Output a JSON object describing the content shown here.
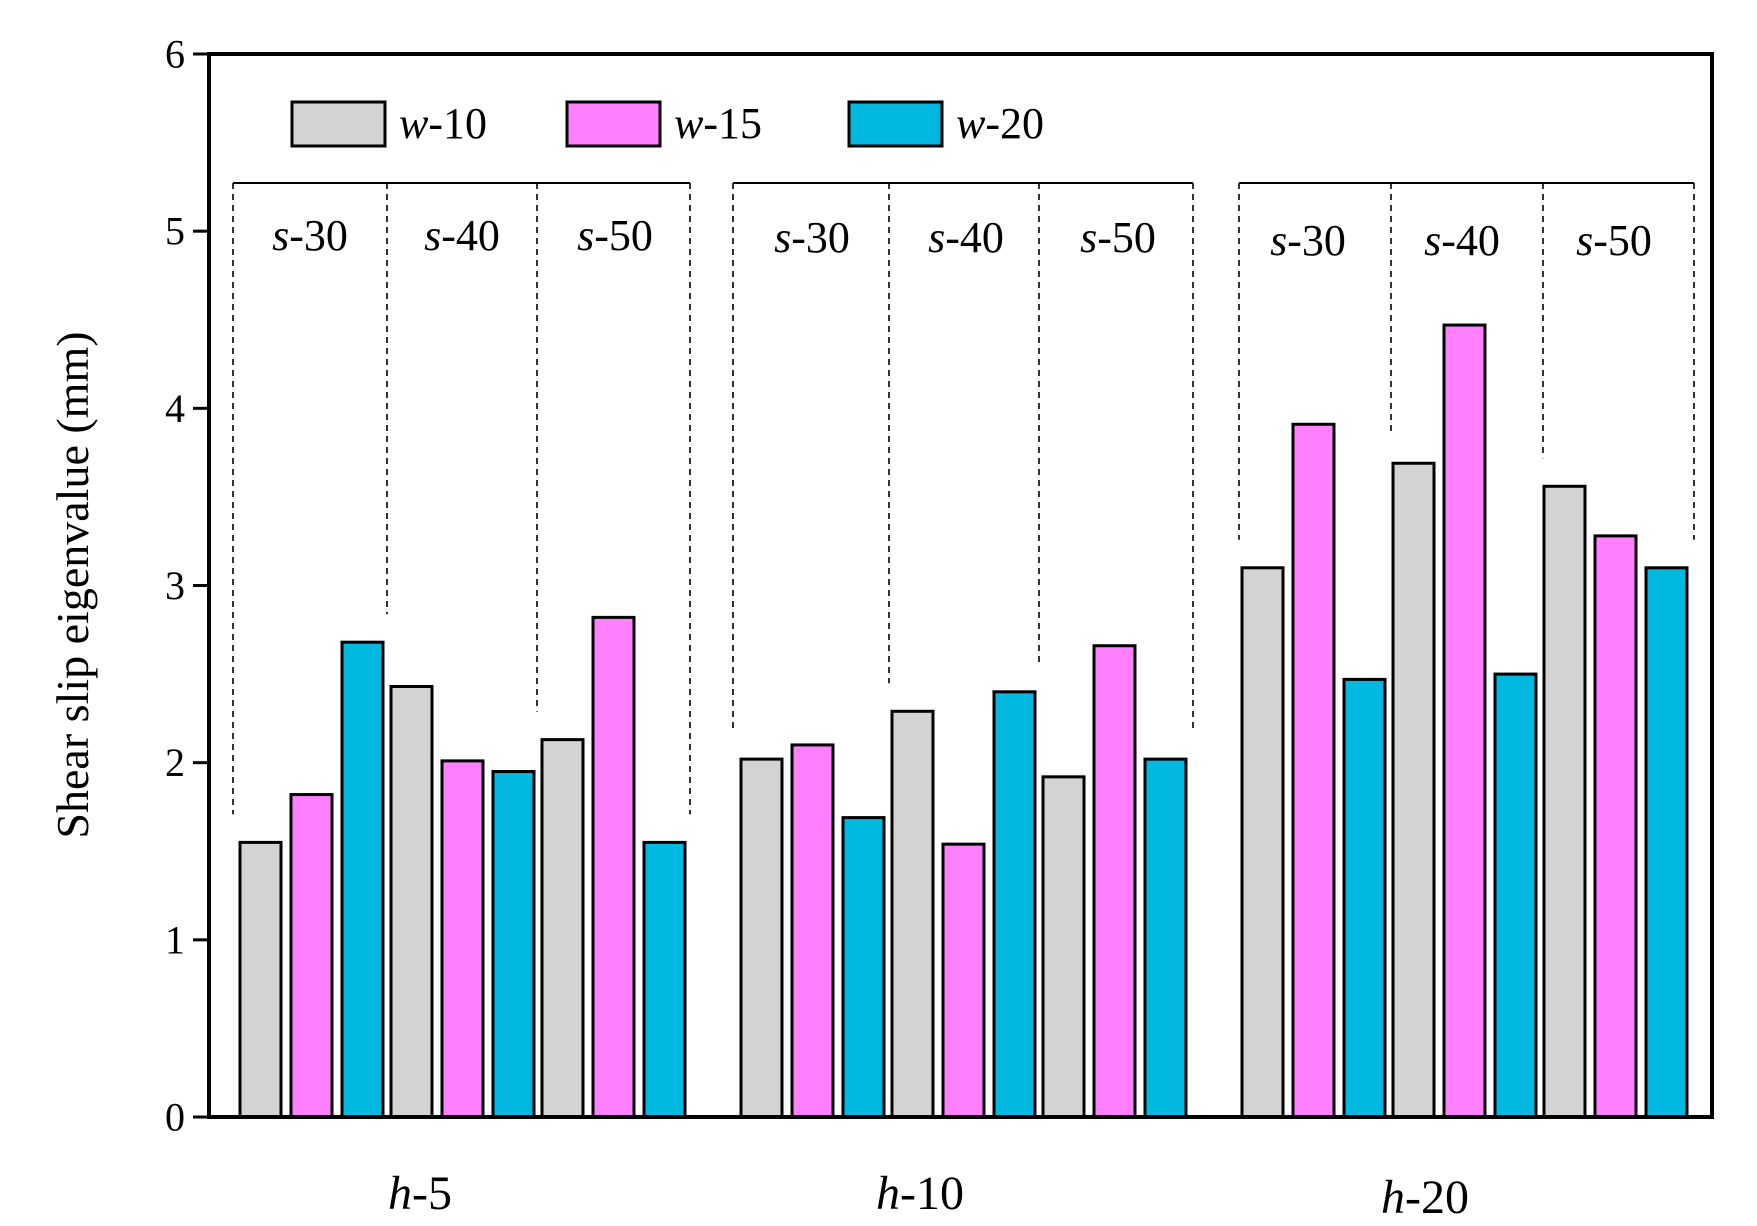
{
  "chart_data": {
    "type": "bar",
    "ylabel": "Shear slip eigenvalue (mm)",
    "xlabel": "",
    "ylim": [
      0,
      6
    ],
    "yticks": [
      "0",
      "1",
      "2",
      "3",
      "4",
      "5",
      "6"
    ],
    "grid": false,
    "legend_position": "top-left",
    "colors": {
      "w-10": "#d3d3d3",
      "w-15": "#ff80ff",
      "w-20": "#00b8e0"
    },
    "legend": [
      {
        "prefix": "w",
        "suffix": "-10",
        "color": "#d3d3d3"
      },
      {
        "prefix": "w",
        "suffix": "-15",
        "color": "#ff80ff"
      },
      {
        "prefix": "w",
        "suffix": "-20",
        "color": "#00b8e0"
      }
    ],
    "groups": [
      {
        "prefix": "h",
        "suffix": "-5",
        "subgroups": [
          {
            "prefix": "s",
            "suffix": "-30",
            "values": [
              1.55,
              1.82,
              2.68
            ]
          },
          {
            "prefix": "s",
            "suffix": "-40",
            "values": [
              2.43,
              2.01,
              1.95
            ]
          },
          {
            "prefix": "s",
            "suffix": "-50",
            "values": [
              2.13,
              2.82,
              1.55
            ]
          }
        ]
      },
      {
        "prefix": "h",
        "suffix": "-10",
        "subgroups": [
          {
            "prefix": "s",
            "suffix": "-30",
            "values": [
              2.02,
              2.1,
              1.69
            ]
          },
          {
            "prefix": "s",
            "suffix": "-40",
            "values": [
              2.29,
              1.54,
              2.4
            ]
          },
          {
            "prefix": "s",
            "suffix": "-50",
            "values": [
              1.92,
              2.66,
              2.02
            ]
          }
        ]
      },
      {
        "prefix": "h",
        "suffix": "-20",
        "subgroups": [
          {
            "prefix": "s",
            "suffix": "-30",
            "values": [
              3.1,
              3.91,
              2.47
            ]
          },
          {
            "prefix": "s",
            "suffix": "-40",
            "values": [
              3.69,
              4.47,
              2.5
            ]
          },
          {
            "prefix": "s",
            "suffix": "-50",
            "values": [
              3.56,
              3.28,
              3.1
            ]
          }
        ]
      }
    ]
  }
}
